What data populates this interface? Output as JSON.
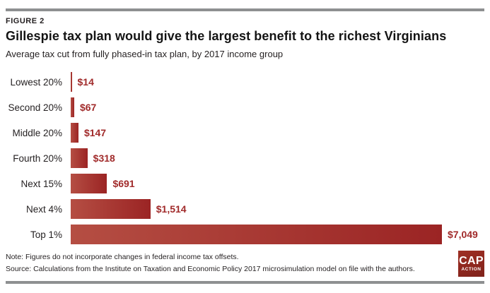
{
  "figure_label": "FIGURE 2",
  "title": "Gillespie tax plan would give the largest benefit to the richest Virginians",
  "subtitle": "Average tax cut from fully phased-in tax plan, by 2017 income group",
  "chart_data": {
    "type": "bar",
    "orientation": "horizontal",
    "categories": [
      "Lowest 20%",
      "Second 20%",
      "Middle 20%",
      "Fourth 20%",
      "Next 15%",
      "Next 4%",
      "Top 1%"
    ],
    "values": [
      14,
      67,
      147,
      318,
      691,
      1514,
      7049
    ],
    "value_labels": [
      "$14",
      "$67",
      "$147",
      "$318",
      "$691",
      "$1,514",
      "$7,049"
    ],
    "xlim": [
      0,
      7049
    ],
    "grid": false,
    "legend": false,
    "bar_gradient_left": "#b54e43",
    "bar_gradient_right": "#9b2424",
    "value_label_color": "#a12b2b"
  },
  "note": "Note: Figures do not incorporate changes in federal income tax offsets.",
  "source": "Source: Calculations from the Institute on Taxation and Economic Policy 2017 microsimulation model on file with the authors.",
  "logo": {
    "line1": "CAP",
    "line2": "ACTION"
  },
  "colors": {
    "rule": "#8e9091",
    "title": "#141414",
    "text": "#231f20"
  }
}
